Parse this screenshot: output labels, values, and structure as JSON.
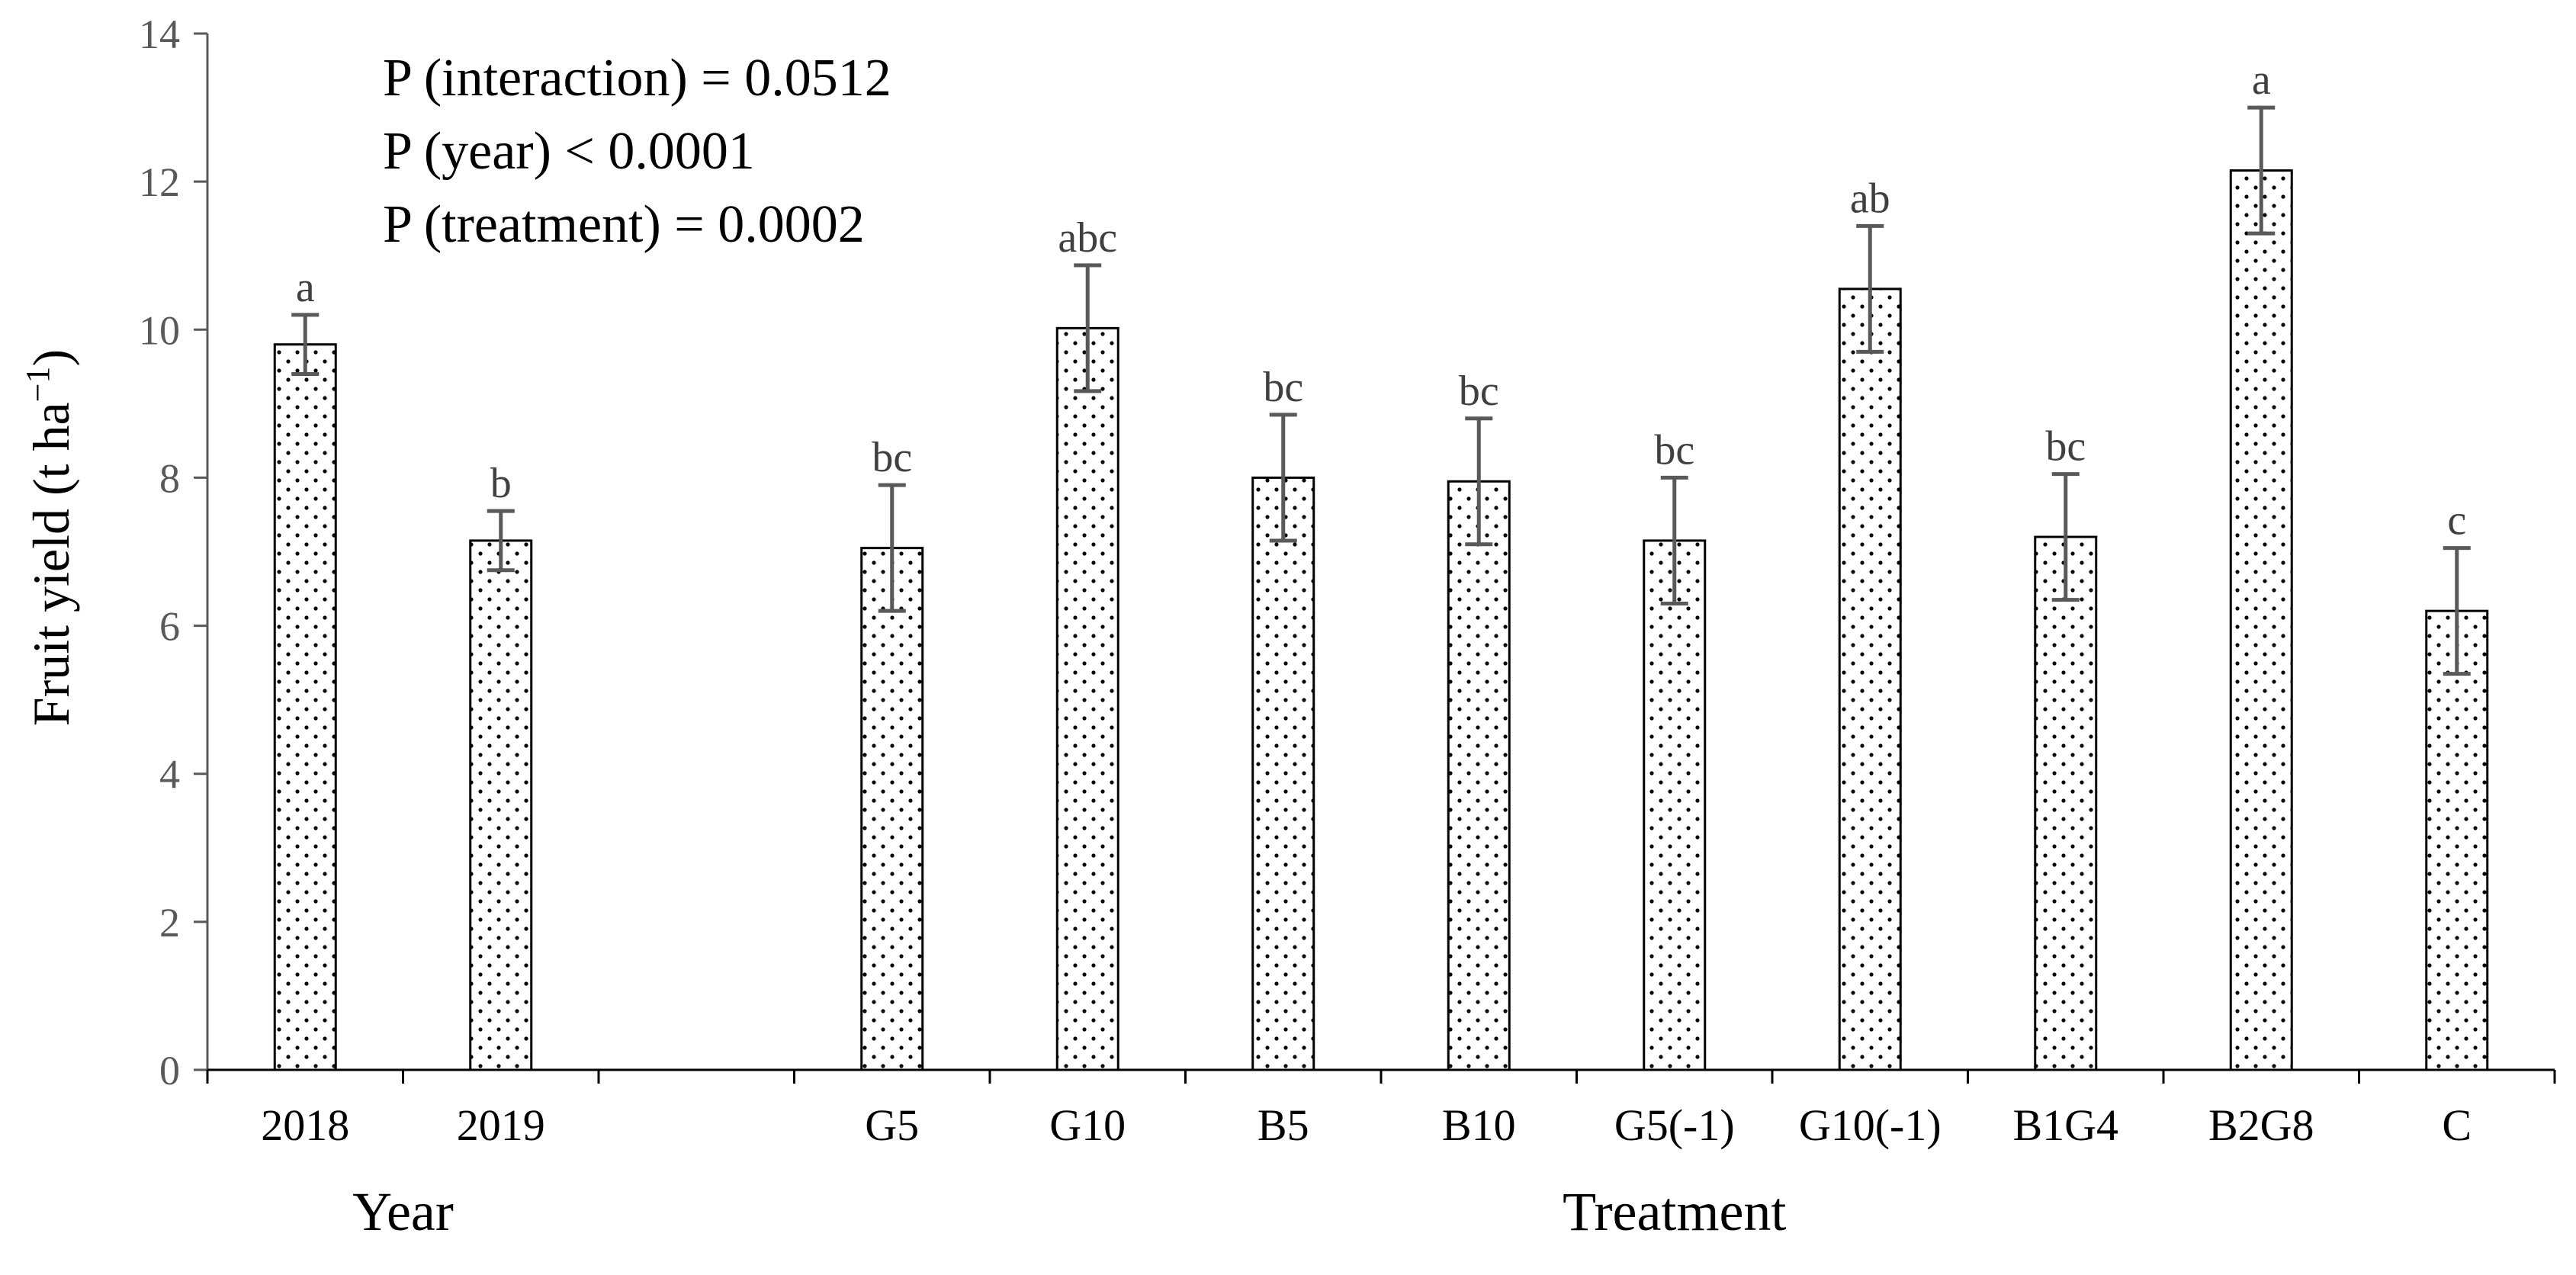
{
  "chart_data": {
    "type": "bar",
    "ylabel": "Fruit yield (t ha",
    "ylabel_sup": "−1",
    "ylabel_close": ")",
    "ylim": [
      0,
      14
    ],
    "yticks": [
      0,
      2,
      4,
      6,
      8,
      10,
      12,
      14
    ],
    "grid": false,
    "legend": "none",
    "bar_fill": "dotted white",
    "bar_edge_color": "#000000",
    "error_bar_color": "#595959",
    "annotations": [
      "P (interaction) = 0.0512",
      "P (year) < 0.0001",
      "P (treatment) = 0.0002"
    ],
    "groups": [
      {
        "label": "Year",
        "categories": [
          "2018",
          "2019"
        ]
      },
      {
        "label": "Treatment",
        "categories": [
          "G5",
          "G10",
          "B5",
          "B10",
          "G5(-1)",
          "G10(-1)",
          "B1G4",
          "B2G8",
          "C"
        ]
      }
    ],
    "categories": [
      "2018",
      "2019",
      "",
      "G5",
      "G10",
      "B5",
      "B10",
      "G5(-1)",
      "G10(-1)",
      "B1G4",
      "B2G8",
      "C"
    ],
    "values": [
      9.8,
      7.15,
      null,
      7.05,
      10.02,
      8.0,
      7.95,
      7.15,
      10.55,
      7.2,
      12.15,
      6.2
    ],
    "errors": [
      0.4,
      0.4,
      null,
      0.85,
      0.85,
      0.85,
      0.85,
      0.85,
      0.85,
      0.85,
      0.85,
      0.85
    ],
    "significance_letters": [
      "a",
      "b",
      "",
      "bc",
      "abc",
      "bc",
      "bc",
      "bc",
      "ab",
      "bc",
      "a",
      "c"
    ]
  }
}
